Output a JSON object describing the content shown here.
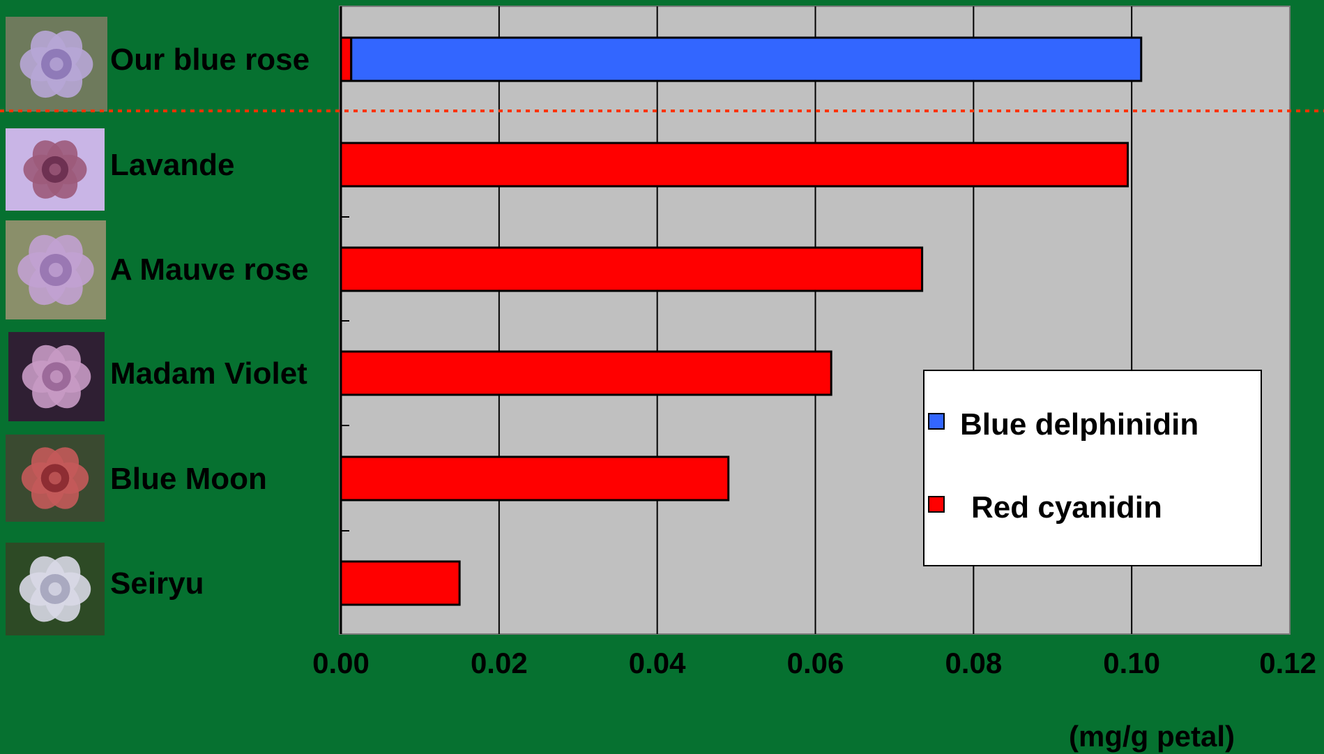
{
  "chart_data": {
    "type": "bar",
    "orientation": "horizontal",
    "stacked": true,
    "categories": [
      "Our blue rose",
      "Lavande",
      "A Mauve rose",
      "Madam Violet",
      "Blue Moon",
      "Seiryu"
    ],
    "series": [
      {
        "name": "Red cyanidin",
        "color": "#ff0000",
        "values": [
          0.0013,
          0.0995,
          0.0735,
          0.062,
          0.049,
          0.015
        ]
      },
      {
        "name": "Blue delphinidin",
        "color": "#3366ff",
        "values": [
          0.0999,
          0,
          0,
          0,
          0,
          0
        ]
      }
    ],
    "xlim": [
      0,
      0.12
    ],
    "xticks": [
      "0.00",
      "0.02",
      "0.04",
      "0.06",
      "0.08",
      "0.10",
      "0.12"
    ],
    "unit": "(mg/g petal)",
    "grid": true,
    "legend": "right",
    "plot_background": "#c0c0c0",
    "page_background": "#067130"
  }
}
